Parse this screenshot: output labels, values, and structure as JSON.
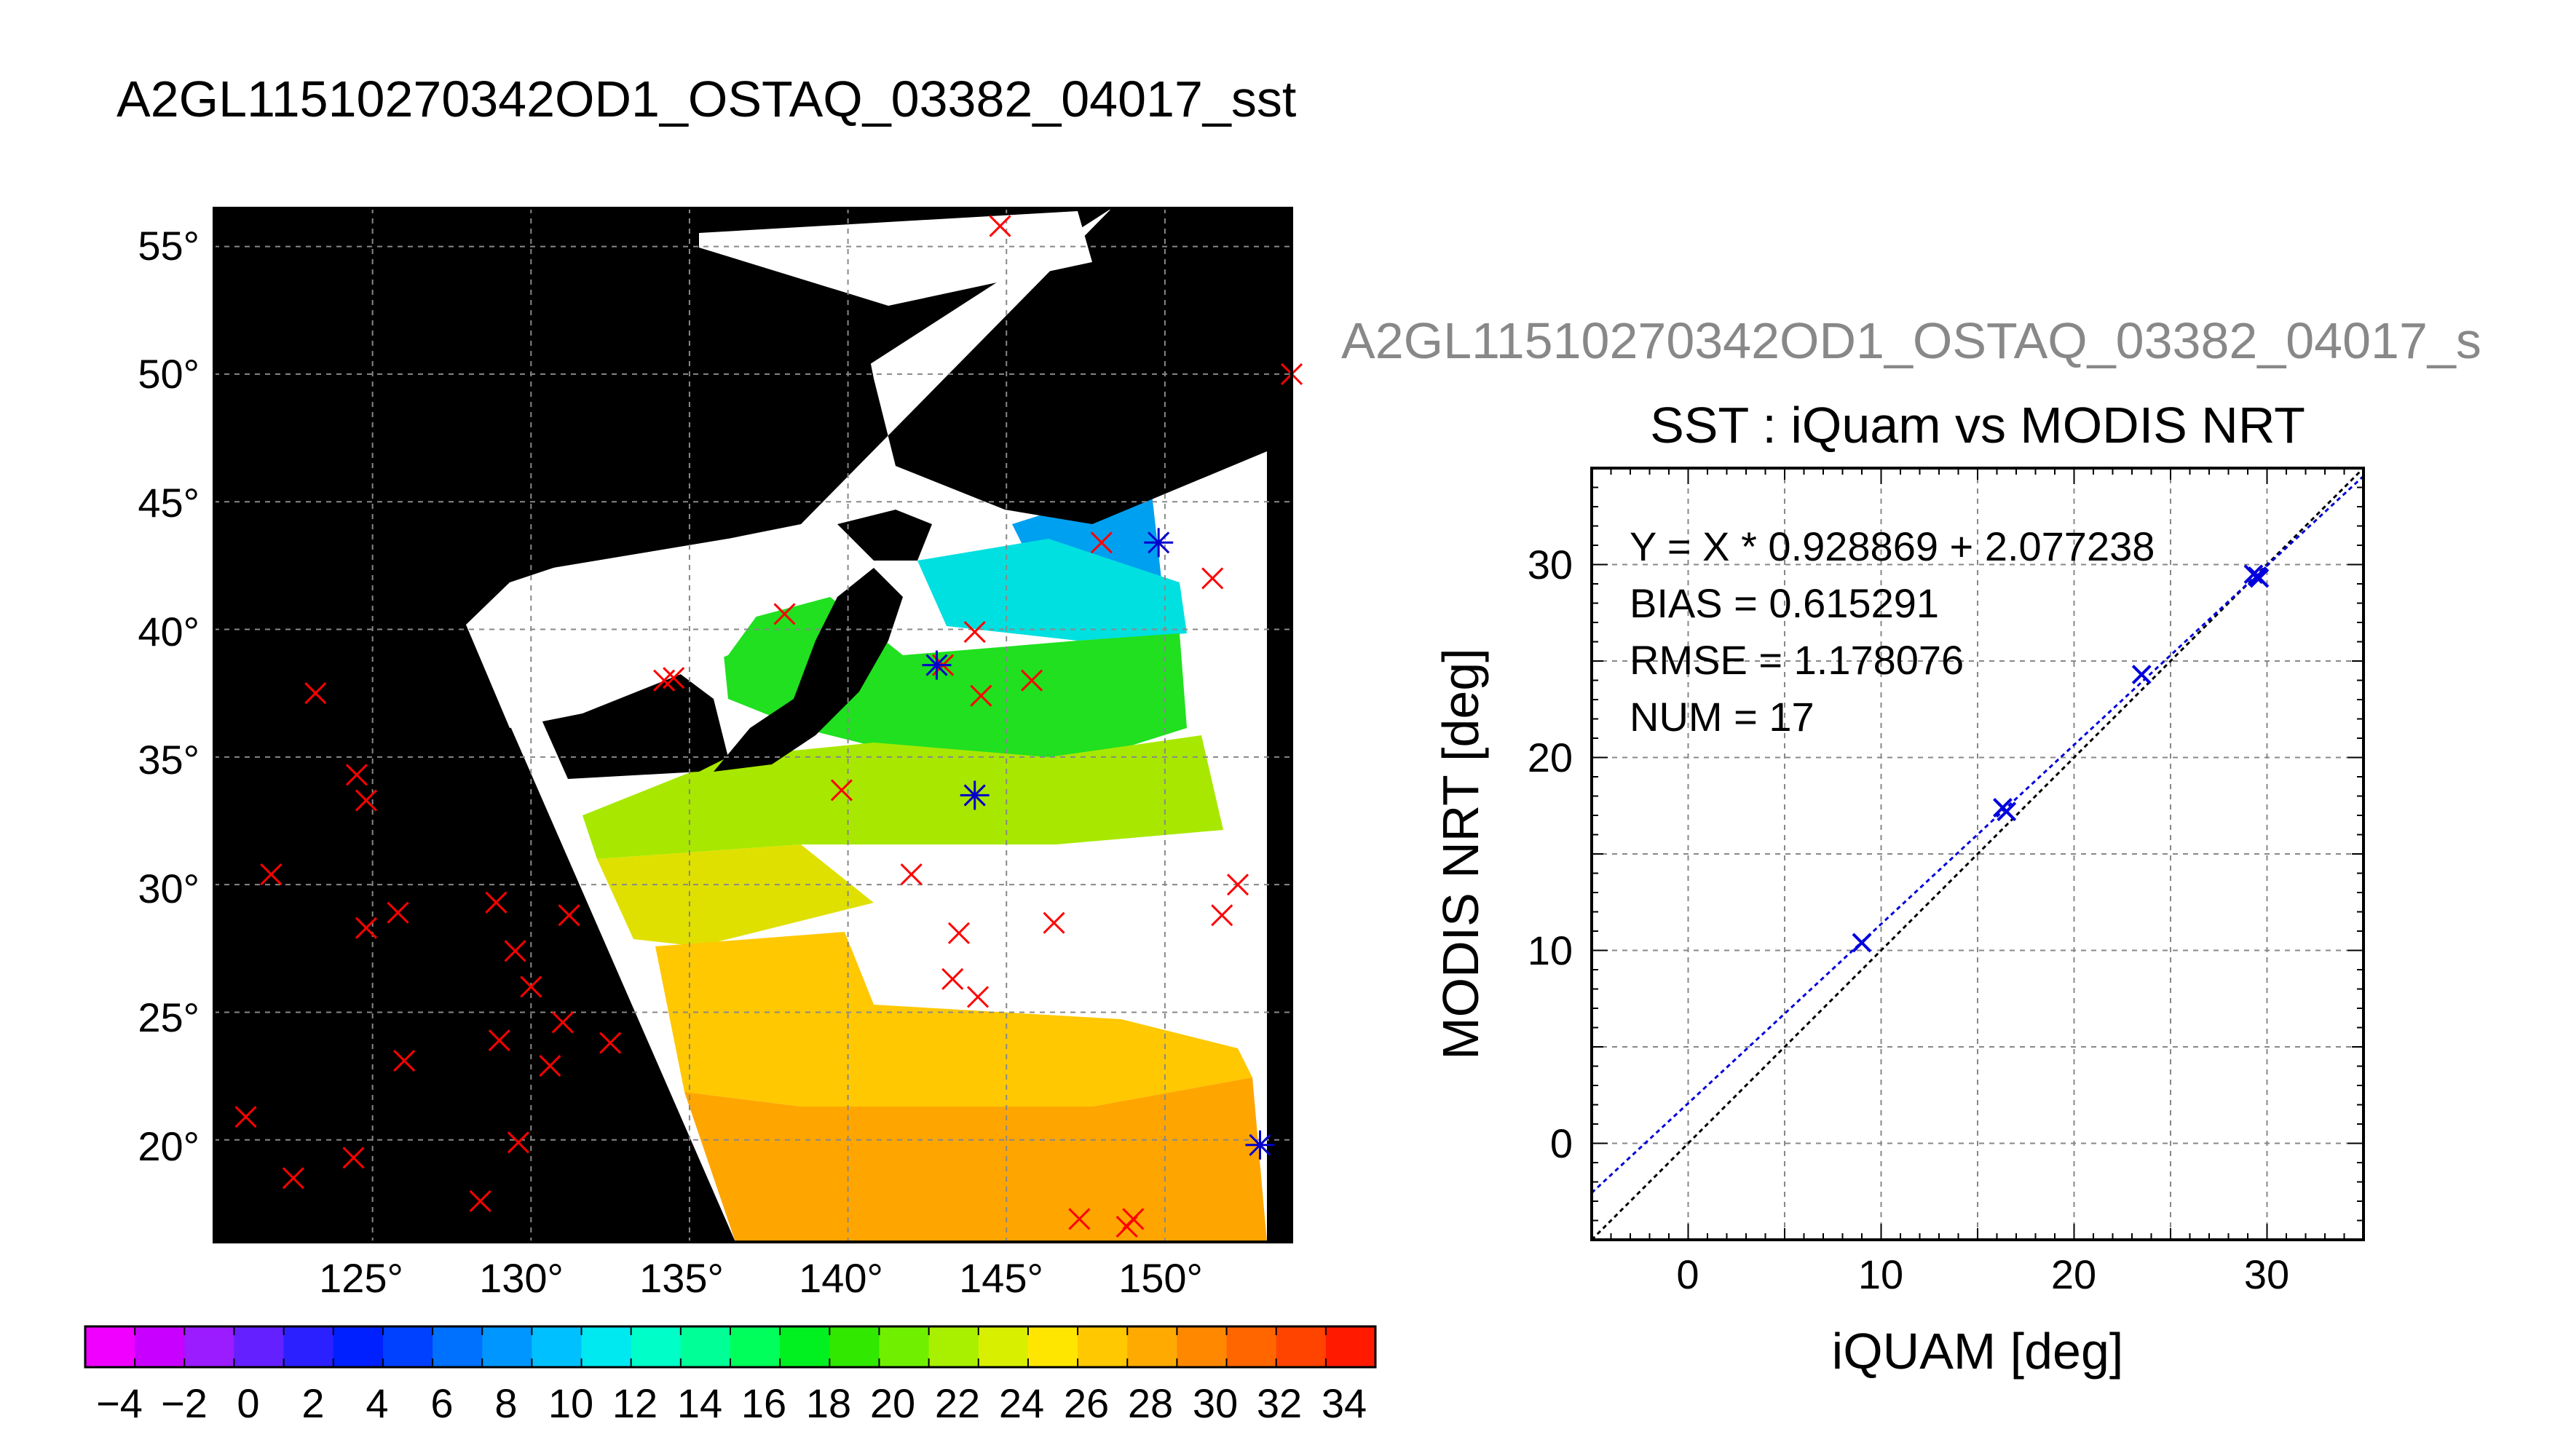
{
  "main_title": "A2GL11510270342OD1_OSTAQ_03382_04017_sst",
  "map": {
    "lat_ticks": [
      "55°",
      "50°",
      "45°",
      "40°",
      "35°",
      "30°",
      "25°",
      "20°"
    ],
    "lon_ticks": [
      "125°",
      "130°",
      "135°",
      "140°",
      "145°",
      "150°"
    ],
    "lon_range": [
      120.0,
      154.0
    ],
    "lat_range": [
      16.0,
      56.5
    ],
    "grid": true,
    "land_color": "#000000",
    "no_data_color": "#ffffff",
    "marker_color": "#ff0000",
    "match_marker_color": "#0000cc"
  },
  "colorbar": {
    "tick_labels": [
      "−4",
      "−2",
      "0",
      "2",
      "4",
      "6",
      "8",
      "10",
      "12",
      "14",
      "16",
      "18",
      "20",
      "22",
      "24",
      "26",
      "28",
      "30",
      "32",
      "34"
    ],
    "colors": [
      "#f000ff",
      "#c800ff",
      "#9a1cff",
      "#6420ff",
      "#2b20ff",
      "#0020ff",
      "#0040ff",
      "#0070ff",
      "#0096ff",
      "#00c0ff",
      "#00e8f0",
      "#00ffc8",
      "#00ff96",
      "#00ff5a",
      "#00f020",
      "#30e800",
      "#70f000",
      "#a8f000",
      "#d8f000",
      "#ffe600",
      "#ffc800",
      "#ffaa00",
      "#ff8800",
      "#ff6600",
      "#ff4400",
      "#ff1a00"
    ]
  },
  "scatter": {
    "cut_title": "A2GL11510270342OD1_OSTAQ_03382_04017_s",
    "title": "SST : iQuam vs MODIS NRT",
    "stats": [
      "Y = X * 0.928869 + 2.077238",
      "BIAS = 0.615291",
      "RMSE = 1.178076",
      "NUM = 17"
    ],
    "xlabel": "iQUAM [deg]",
    "ylabel": "MODIS NRT [deg]",
    "x_ticks": [
      "0",
      "10",
      "20",
      "30"
    ],
    "y_ticks": [
      "0",
      "10",
      "20",
      "30"
    ]
  },
  "chart_data": [
    {
      "type": "scatter",
      "title": "SST : iQuam vs MODIS NRT",
      "xlabel": "iQUAM [deg]",
      "ylabel": "MODIS NRT [deg]",
      "xlim": [
        -5,
        35
      ],
      "ylim": [
        -5,
        35
      ],
      "grid": true,
      "series": [
        {
          "x": [
            9.0,
            16.5,
            16.3,
            23.5,
            29.5,
            29.3,
            29.6
          ],
          "y": [
            10.4,
            17.2,
            17.4,
            24.3,
            29.4,
            29.5,
            29.3
          ]
        }
      ],
      "fit_line": {
        "slope": 0.928869,
        "intercept": 2.077238
      },
      "reference_line": {
        "slope": 1,
        "intercept": 0
      },
      "stats": {
        "bias": 0.615291,
        "rmse": 1.178076,
        "num": 17
      }
    },
    {
      "type": "scatter",
      "title": "",
      "xlabel": "",
      "ylabel": "",
      "xlim": [
        120.0,
        154.0
      ],
      "ylim": [
        16.0,
        56.5
      ],
      "grid": true,
      "series": [
        {
          "x": [
            144.8,
            154.0,
            148.0,
            151.5,
            138.0,
            144.0,
            134.2,
            134.5,
            143.0,
            145.8,
            144.2,
            123.2,
            124.5,
            124.8,
            139.8,
            144.0,
            121.8,
            142.0,
            152.3,
            128.9,
            131.2,
            124.8,
            125.8,
            129.5,
            151.8,
            143.5,
            146.5,
            130.0,
            143.3,
            144.1,
            131.0,
            132.5,
            129.0,
            130.6,
            126.0,
            121.0,
            129.6,
            122.5,
            124.4,
            128.4,
            147.3,
            149.0,
            148.8
          ],
          "y": [
            55.8,
            50.0,
            43.4,
            42.0,
            40.6,
            39.9,
            38.0,
            38.1,
            38.6,
            38.0,
            37.4,
            37.5,
            34.3,
            33.3,
            33.7,
            33.5,
            30.4,
            30.4,
            30.0,
            29.3,
            28.8,
            28.3,
            28.9,
            27.4,
            28.8,
            28.1,
            28.5,
            26.0,
            26.3,
            25.6,
            24.6,
            23.8,
            23.9,
            22.9,
            23.1,
            20.9,
            19.9,
            18.5,
            19.3,
            17.6,
            16.9,
            16.9,
            16.6
          ]
        },
        {
          "x": [
            149.8,
            142.8,
            144.0,
            153.0
          ],
          "y": [
            43.4,
            38.6,
            33.5,
            19.8
          ]
        }
      ]
    }
  ]
}
